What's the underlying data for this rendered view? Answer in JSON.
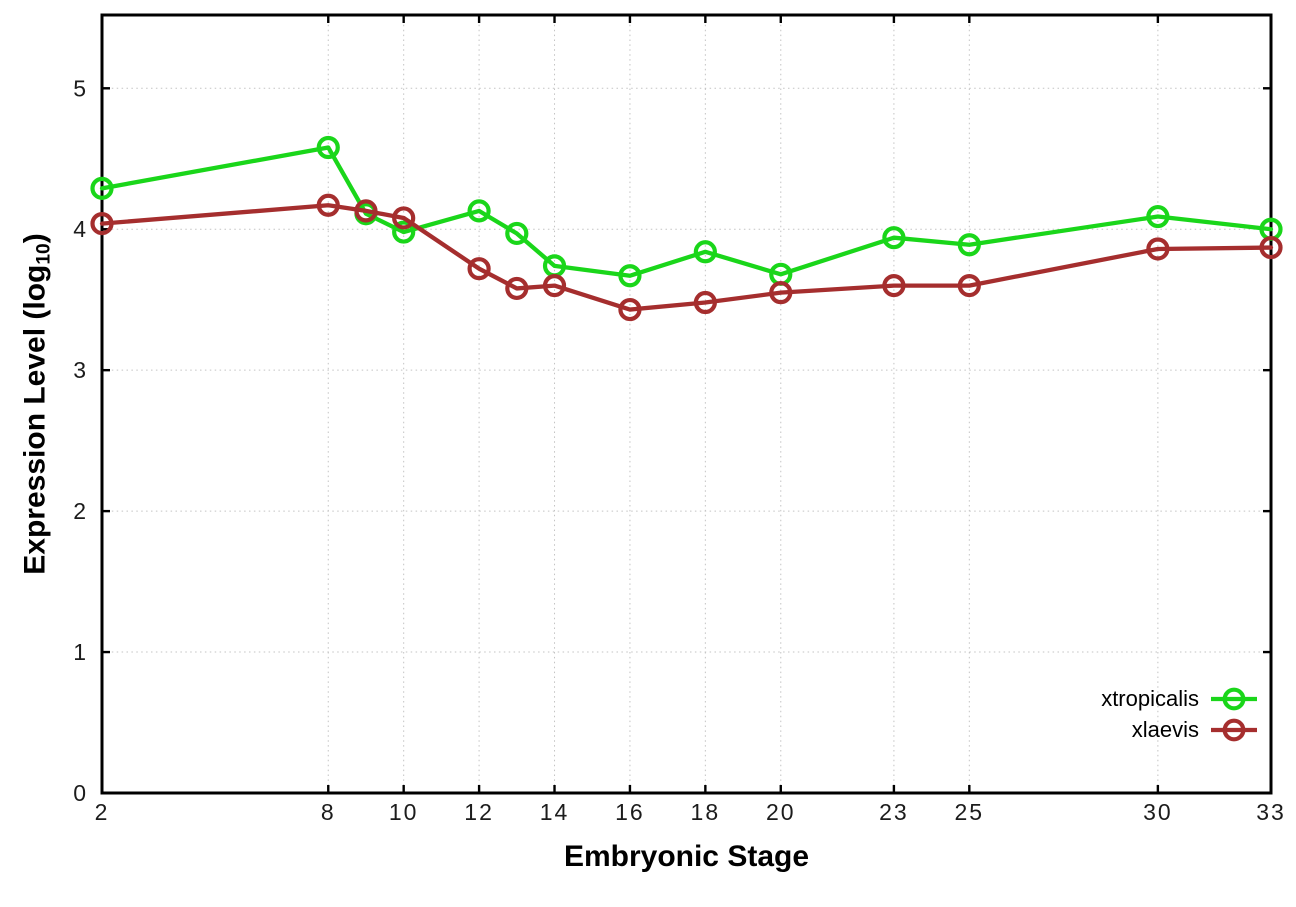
{
  "chart_data": {
    "type": "line",
    "title": "",
    "xlabel": "Embryonic Stage",
    "ylabel": "Expression Level (log10)",
    "x": [
      2,
      8,
      9,
      10,
      12,
      13,
      14,
      16,
      18,
      20,
      23,
      25,
      30,
      33
    ],
    "series": [
      {
        "name": "xtropicalis",
        "color": "#1ad61a",
        "values": [
          4.29,
          4.58,
          4.11,
          3.98,
          4.13,
          3.97,
          3.74,
          3.67,
          3.84,
          3.68,
          3.94,
          3.89,
          4.09,
          4.0
        ]
      },
      {
        "name": "xlaevis",
        "color": "#a52e2e",
        "values": [
          4.04,
          4.17,
          4.13,
          4.08,
          3.72,
          3.58,
          3.6,
          3.43,
          3.48,
          3.55,
          3.6,
          3.6,
          3.86,
          3.87
        ]
      }
    ],
    "xticks": [
      2,
      8,
      10,
      12,
      14,
      16,
      18,
      20,
      23,
      25,
      30,
      33
    ],
    "yticks": [
      0,
      1,
      2,
      3,
      4,
      5
    ],
    "xlim": [
      2,
      33
    ],
    "ylim": [
      0,
      5.52
    ],
    "grid": true,
    "grid_style": "dotted",
    "grid_color": "#c3c3c3",
    "axis_color": "#000000",
    "background": "#ffffff",
    "legend_position": "inside-bottom-right",
    "marker": "open-circle"
  },
  "labels": {
    "ylabel_main": "Expression Level (log",
    "ylabel_sub": "10",
    "ylabel_close": ")"
  }
}
